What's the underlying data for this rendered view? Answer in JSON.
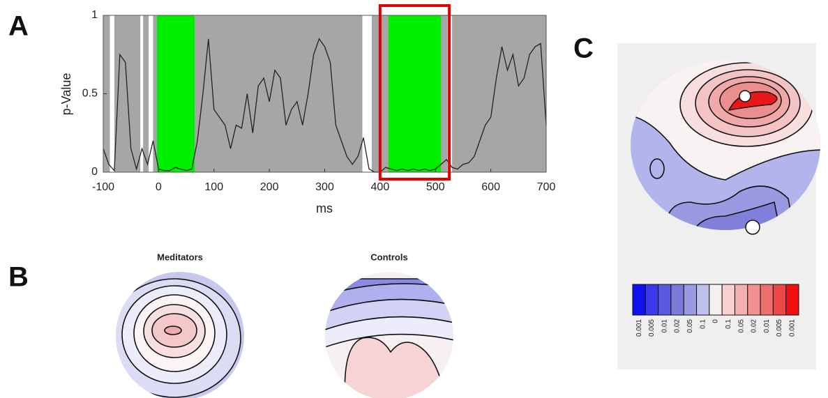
{
  "chart_data": {
    "type": "line",
    "panel_label": "A",
    "xlabel": "ms",
    "ylabel": "p-Value",
    "x": [
      -100,
      -90,
      -80,
      -70,
      -60,
      -50,
      -40,
      -30,
      -20,
      -10,
      0,
      10,
      20,
      30,
      40,
      50,
      60,
      70,
      80,
      90,
      100,
      110,
      120,
      130,
      140,
      150,
      160,
      170,
      180,
      190,
      200,
      210,
      220,
      230,
      240,
      250,
      260,
      270,
      280,
      290,
      300,
      310,
      320,
      330,
      340,
      350,
      360,
      370,
      380,
      390,
      400,
      410,
      420,
      430,
      440,
      450,
      460,
      470,
      480,
      490,
      500,
      510,
      520,
      530,
      540,
      550,
      560,
      570,
      580,
      590,
      600,
      610,
      620,
      630,
      640,
      650,
      660,
      670,
      680,
      690,
      700
    ],
    "series": [
      {
        "color": "#222222",
        "values": [
          0.15,
          0.05,
          0.01,
          0.75,
          0.7,
          0.15,
          0.02,
          0.15,
          0.05,
          0.2,
          0.02,
          0.01,
          0.01,
          0.03,
          0.02,
          0.01,
          0.02,
          0.2,
          0.5,
          0.85,
          0.4,
          0.35,
          0.3,
          0.15,
          0.3,
          0.28,
          0.5,
          0.25,
          0.55,
          0.6,
          0.45,
          0.65,
          0.6,
          0.3,
          0.4,
          0.45,
          0.3,
          0.5,
          0.75,
          0.85,
          0.8,
          0.7,
          0.3,
          0.2,
          0.1,
          0.05,
          0.1,
          0.22,
          0.02,
          0.0,
          0.0,
          0.03,
          0.02,
          0.01,
          0.02,
          0.01,
          0.02,
          0.01,
          0.02,
          0.01,
          0.02,
          0.05,
          0.08,
          0.03,
          0.02,
          0.05,
          0.06,
          0.1,
          0.2,
          0.3,
          0.35,
          0.6,
          0.8,
          0.65,
          0.75,
          0.55,
          0.6,
          0.75,
          0.8,
          0.82,
          0.3
        ]
      }
    ],
    "background_color": "#a6a6a6",
    "spans": [
      {
        "start": -88,
        "end": -80,
        "color": "#ffffff"
      },
      {
        "start": -33,
        "end": -28,
        "color": "#ffffff"
      },
      {
        "start": -18,
        "end": -10,
        "color": "#ffffff"
      },
      {
        "start": -3,
        "end": 65,
        "color": "#00ee00"
      },
      {
        "start": 368,
        "end": 385,
        "color": "#ffffff"
      },
      {
        "start": 415,
        "end": 510,
        "color": "#00ee00"
      },
      {
        "start": 522,
        "end": 530,
        "color": "#ffffff"
      }
    ],
    "box": {
      "start": 400,
      "end": 525,
      "color": "#e00000"
    },
    "xlim": [
      -100,
      700
    ],
    "xticks": [
      -100,
      0,
      100,
      200,
      300,
      400,
      500,
      600,
      700
    ],
    "ylim": [
      0,
      1
    ],
    "yticks": [
      0,
      0.5,
      1
    ]
  },
  "panel_b": {
    "label": "B",
    "maps": [
      "Meditators",
      "Controls"
    ]
  },
  "panel_c": {
    "label": "C",
    "colorbar": {
      "colors": [
        "#1010f0",
        "#3a3ae8",
        "#5a5ae0",
        "#7a7ad8",
        "#9a9ae0",
        "#c0c0ec",
        "#f5f0f0",
        "#f8d0d0",
        "#f4b0b0",
        "#f09090",
        "#ec7070",
        "#ec4848",
        "#f01010"
      ],
      "labels": [
        "0.001",
        "0.005",
        "0.01",
        "0.02",
        "0.05",
        "0.1",
        "0",
        "0.1",
        "0.05",
        "0.02",
        "0.01",
        "0.005",
        "0.001"
      ]
    }
  }
}
